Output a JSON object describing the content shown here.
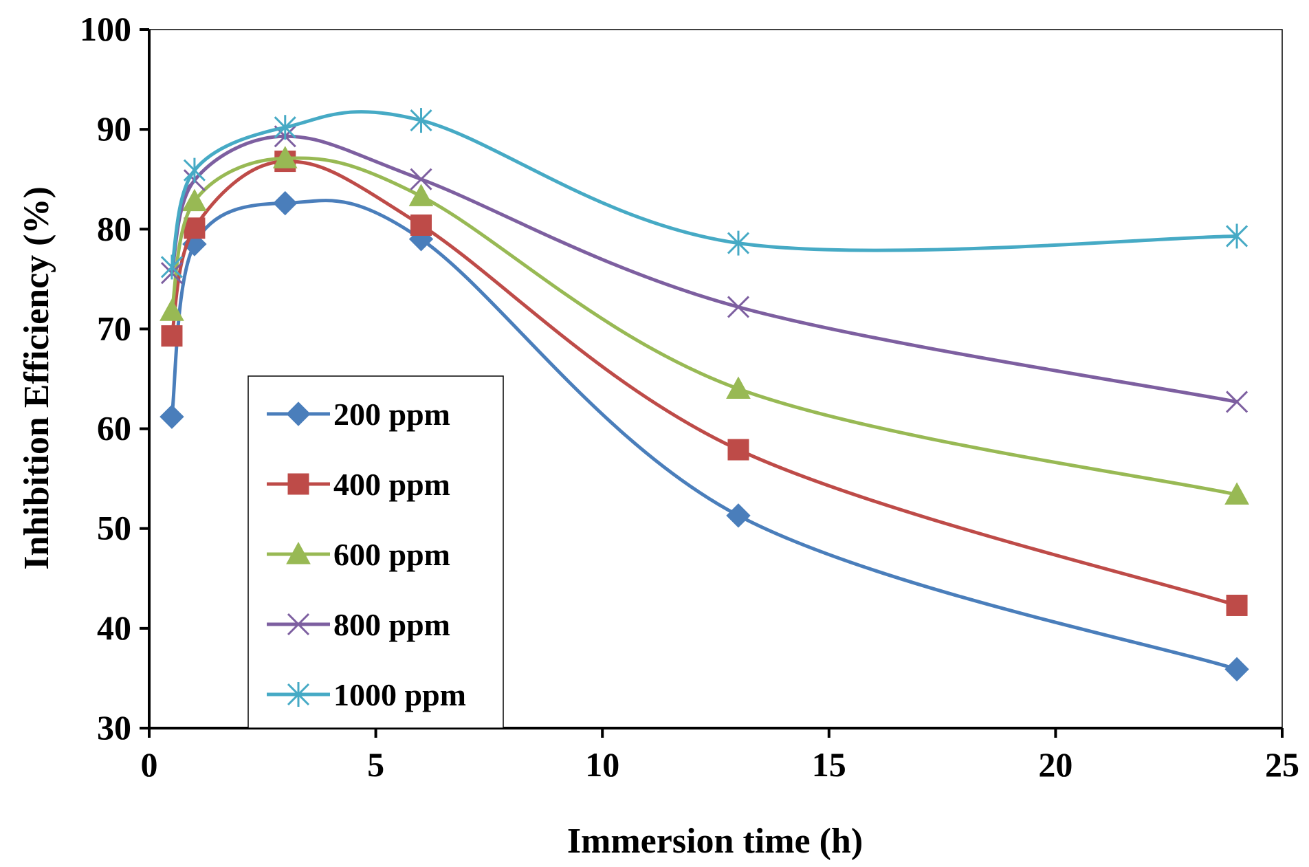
{
  "chart_data": {
    "type": "line",
    "smooth": true,
    "xlabel": "Immersion  time (h)",
    "ylabel": "Inhibition Efficiency (%)",
    "xlim": [
      0,
      25
    ],
    "ylim": [
      30,
      100
    ],
    "xticks": [
      0,
      5,
      10,
      15,
      20,
      25
    ],
    "yticks": [
      30,
      40,
      50,
      60,
      70,
      80,
      90,
      100
    ],
    "grid": false,
    "legend_position": "bottom-left",
    "x": [
      0.5,
      1,
      3,
      6,
      13,
      24
    ],
    "series": [
      {
        "name": "200 ppm",
        "marker": "diamond",
        "color": "#4a7ebb",
        "values": [
          61.2,
          78.5,
          82.6,
          79.0,
          51.3,
          35.9
        ]
      },
      {
        "name": "400 ppm",
        "marker": "square",
        "color": "#be4b48",
        "values": [
          69.3,
          80.1,
          86.8,
          80.4,
          57.9,
          42.3
        ]
      },
      {
        "name": "600 ppm",
        "marker": "triangle",
        "color": "#98b954",
        "values": [
          71.8,
          82.8,
          87.1,
          83.3,
          64.0,
          53.4
        ]
      },
      {
        "name": "800 ppm",
        "marker": "x",
        "color": "#7d5fa0",
        "values": [
          75.6,
          84.9,
          89.3,
          85.0,
          72.2,
          62.7
        ]
      },
      {
        "name": "1000 ppm",
        "marker": "asterisk",
        "color": "#46aac5",
        "values": [
          76.2,
          85.9,
          90.2,
          90.9,
          78.6,
          79.3
        ]
      }
    ]
  }
}
